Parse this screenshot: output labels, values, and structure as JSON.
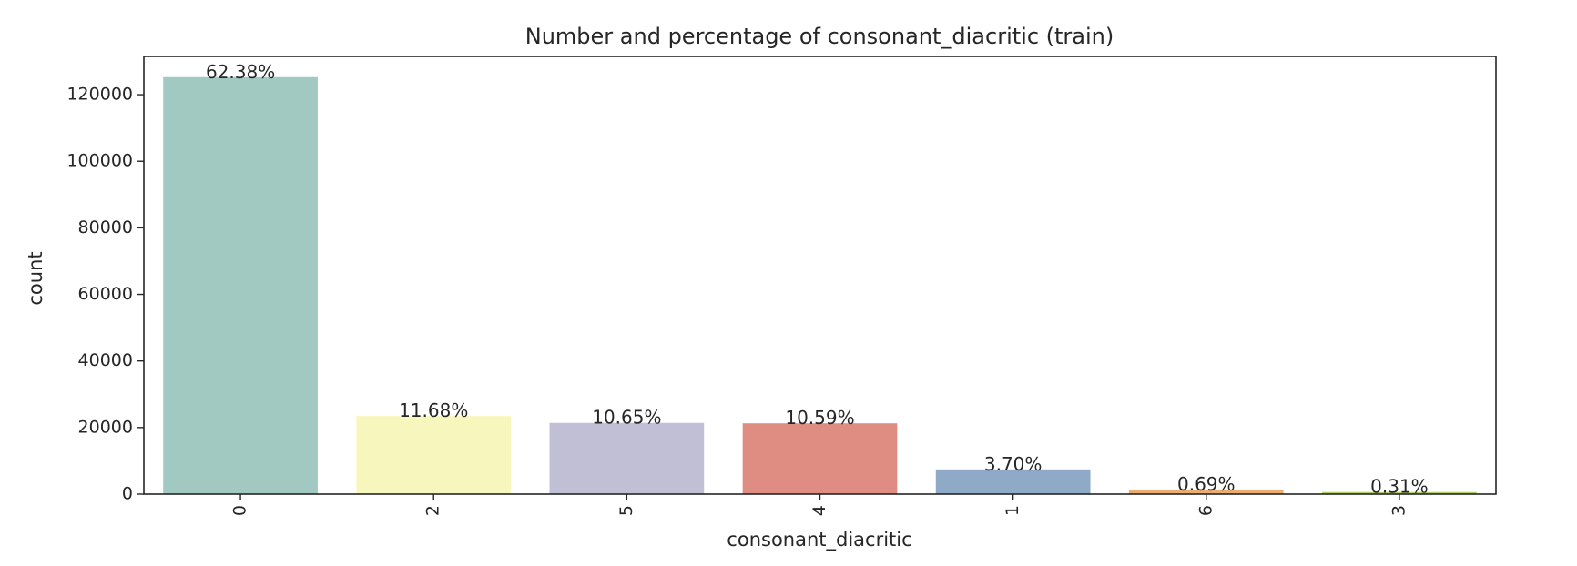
{
  "chart_data": {
    "type": "bar",
    "title": "Number and percentage of consonant_diacritic (train)",
    "xlabel": "consonant_diacritic",
    "ylabel": "count",
    "categories": [
      "0",
      "2",
      "5",
      "4",
      "1",
      "6",
      "3"
    ],
    "values": [
      125278,
      23465,
      21397,
      21270,
      7424,
      1387,
      619
    ],
    "percent_labels": [
      "62.38%",
      "11.68%",
      "10.65%",
      "10.59%",
      "3.70%",
      "0.69%",
      "0.31%"
    ],
    "colors": [
      "#a1c9c1",
      "#f7f6bd",
      "#c0bfd6",
      "#df8d82",
      "#8eaac6",
      "#eaae72",
      "#b2d168"
    ],
    "ylim": [
      0,
      131500
    ],
    "yticks": [
      0,
      20000,
      40000,
      60000,
      80000,
      100000,
      120000
    ],
    "ytick_labels": [
      "0",
      "20000",
      "40000",
      "60000",
      "80000",
      "100000",
      "120000"
    ],
    "xtick_rotation": "vertical",
    "grid": false,
    "legend": "none"
  }
}
